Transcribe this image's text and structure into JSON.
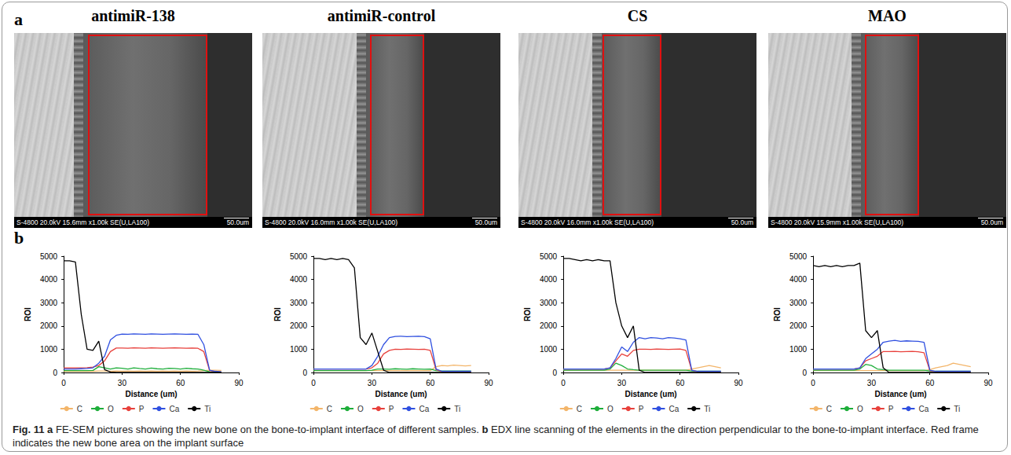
{
  "panel_a": {
    "letter": "a",
    "panels": [
      {
        "title": "antimiR-138",
        "info": "S-4800 20.0kV 15.6mm x1.00k SE(U,LA100)",
        "scale": "50.0um"
      },
      {
        "title": "antimiR-control",
        "info": "S-4800 20.0kV 16.0mm x1.00k SE(U,LA100)",
        "scale": "50.0um"
      },
      {
        "title": "CS",
        "info": "S-4800 20.0kV 16.0mm x1.00k SE(U,LA100)",
        "scale": "50.0um"
      },
      {
        "title": "MAO",
        "info": "S-4800 20.0kV 15.9mm x1.00k SE(U,LA100)",
        "scale": "50.0um"
      }
    ]
  },
  "panel_b": {
    "letter": "b"
  },
  "chart_data": [
    {
      "type": "line",
      "x_label": "Distance (um)",
      "y_label": "ROI",
      "xlim": [
        0,
        90
      ],
      "xticks": [
        0,
        30,
        60,
        90
      ],
      "ylim": [
        0,
        5000
      ],
      "yticks": [
        0,
        1000,
        2000,
        3000,
        4000,
        5000
      ],
      "grid": false,
      "legend": "bottom",
      "x": [
        0,
        3,
        6,
        9,
        12,
        15,
        18,
        21,
        24,
        27,
        30,
        33,
        36,
        39,
        42,
        45,
        48,
        51,
        54,
        57,
        60,
        63,
        66,
        69,
        72,
        75,
        78,
        81
      ],
      "series": [
        {
          "name": "C",
          "color": "#f3b56a",
          "values": [
            50,
            50,
            50,
            50,
            50,
            50,
            60,
            60,
            50,
            60,
            50,
            60,
            50,
            60,
            50,
            60,
            50,
            60,
            50,
            60,
            50,
            60,
            50,
            60,
            80,
            100,
            100,
            90
          ]
        },
        {
          "name": "O",
          "color": "#1fae3b",
          "values": [
            80,
            80,
            80,
            80,
            80,
            90,
            250,
            200,
            150,
            200,
            180,
            150,
            200,
            170,
            150,
            190,
            160,
            150,
            180,
            170,
            150,
            180,
            160,
            150,
            100,
            30,
            20,
            20
          ]
        },
        {
          "name": "P",
          "color": "#e8413c",
          "values": [
            200,
            200,
            200,
            200,
            210,
            230,
            300,
            500,
            900,
            1050,
            1050,
            1040,
            1060,
            1050,
            1040,
            1060,
            1050,
            1040,
            1050,
            1060,
            1050,
            1040,
            1050,
            1040,
            900,
            80,
            40,
            20
          ]
        },
        {
          "name": "Ca",
          "color": "#3050e0",
          "values": [
            150,
            150,
            150,
            160,
            170,
            200,
            400,
            700,
            1400,
            1600,
            1650,
            1640,
            1660,
            1650,
            1640,
            1660,
            1650,
            1640,
            1650,
            1660,
            1650,
            1640,
            1650,
            1640,
            1200,
            100,
            50,
            30
          ]
        },
        {
          "name": "Ti",
          "color": "#000000",
          "values": [
            4800,
            4800,
            4750,
            2500,
            1000,
            950,
            1350,
            120,
            20,
            0,
            0,
            0,
            0,
            0,
            0,
            0,
            0,
            0,
            0,
            0,
            0,
            0,
            0,
            0,
            0,
            0,
            0,
            0
          ]
        }
      ]
    },
    {
      "type": "line",
      "x_label": "Distance (um)",
      "y_label": "ROI",
      "xlim": [
        0,
        90
      ],
      "xticks": [
        0,
        30,
        60,
        90
      ],
      "ylim": [
        0,
        5000
      ],
      "yticks": [
        0,
        1000,
        2000,
        3000,
        4000,
        5000
      ],
      "grid": false,
      "legend": "bottom",
      "x": [
        0,
        3,
        6,
        9,
        12,
        15,
        18,
        21,
        24,
        27,
        30,
        33,
        36,
        39,
        42,
        45,
        48,
        51,
        54,
        57,
        60,
        63,
        66,
        69,
        72,
        75,
        78,
        81
      ],
      "series": [
        {
          "name": "C",
          "color": "#f3b56a",
          "values": [
            80,
            80,
            80,
            80,
            80,
            80,
            80,
            80,
            80,
            80,
            80,
            80,
            80,
            80,
            80,
            80,
            80,
            80,
            80,
            80,
            80,
            250,
            300,
            280,
            320,
            300,
            280,
            300
          ]
        },
        {
          "name": "O",
          "color": "#1fae3b",
          "values": [
            80,
            80,
            80,
            80,
            80,
            80,
            80,
            80,
            80,
            80,
            100,
            150,
            150,
            140,
            160,
            150,
            140,
            160,
            150,
            140,
            150,
            80,
            60,
            60,
            60,
            60,
            60,
            60
          ]
        },
        {
          "name": "P",
          "color": "#e8413c",
          "values": [
            150,
            150,
            150,
            150,
            150,
            150,
            150,
            150,
            150,
            150,
            200,
            400,
            800,
            950,
            1000,
            990,
            1010,
            1000,
            990,
            1000,
            950,
            120,
            40,
            40,
            40,
            40,
            40,
            40
          ]
        },
        {
          "name": "Ca",
          "color": "#3050e0",
          "values": [
            150,
            150,
            150,
            150,
            150,
            150,
            150,
            150,
            150,
            150,
            300,
            700,
            1200,
            1500,
            1550,
            1560,
            1540,
            1550,
            1560,
            1540,
            1450,
            150,
            50,
            50,
            50,
            50,
            50,
            50
          ]
        },
        {
          "name": "Ti",
          "color": "#000000",
          "values": [
            4900,
            4900,
            4850,
            4900,
            4850,
            4900,
            4850,
            4500,
            1500,
            1200,
            1700,
            900,
            100,
            0,
            0,
            0,
            0,
            0,
            0,
            0,
            0,
            0,
            0,
            0,
            0,
            0,
            0,
            0
          ]
        }
      ]
    },
    {
      "type": "line",
      "x_label": "Distance (um)",
      "y_label": "ROI",
      "xlim": [
        0,
        90
      ],
      "xticks": [
        0,
        30,
        60,
        90
      ],
      "ylim": [
        0,
        5000
      ],
      "yticks": [
        0,
        1000,
        2000,
        3000,
        4000,
        5000
      ],
      "grid": false,
      "legend": "bottom",
      "x": [
        0,
        3,
        6,
        9,
        12,
        15,
        18,
        21,
        24,
        27,
        30,
        33,
        36,
        39,
        42,
        45,
        48,
        51,
        54,
        57,
        60,
        63,
        66,
        69,
        72,
        75,
        78,
        81
      ],
      "series": [
        {
          "name": "C",
          "color": "#f3b56a",
          "values": [
            100,
            100,
            100,
            100,
            100,
            100,
            100,
            100,
            100,
            100,
            100,
            100,
            100,
            100,
            100,
            100,
            100,
            100,
            100,
            100,
            100,
            100,
            150,
            200,
            250,
            300,
            250,
            200
          ]
        },
        {
          "name": "O",
          "color": "#1fae3b",
          "values": [
            100,
            100,
            100,
            100,
            100,
            100,
            100,
            100,
            150,
            400,
            300,
            150,
            120,
            100,
            100,
            100,
            100,
            100,
            100,
            100,
            100,
            100,
            60,
            50,
            50,
            50,
            50,
            50
          ]
        },
        {
          "name": "P",
          "color": "#e8413c",
          "values": [
            150,
            150,
            150,
            150,
            150,
            150,
            150,
            150,
            200,
            500,
            800,
            700,
            950,
            1000,
            1000,
            990,
            1010,
            1000,
            990,
            1000,
            1010,
            950,
            100,
            40,
            40,
            40,
            40,
            40
          ]
        },
        {
          "name": "Ca",
          "color": "#3050e0",
          "values": [
            150,
            150,
            150,
            150,
            150,
            150,
            150,
            150,
            200,
            600,
            1100,
            900,
            1300,
            1500,
            1450,
            1500,
            1480,
            1450,
            1500,
            1480,
            1450,
            1400,
            100,
            50,
            50,
            50,
            50,
            50
          ]
        },
        {
          "name": "Ti",
          "color": "#000000",
          "values": [
            4900,
            4900,
            4850,
            4800,
            4850,
            4800,
            4850,
            4800,
            4800,
            3000,
            2000,
            1500,
            2000,
            100,
            0,
            0,
            0,
            0,
            0,
            0,
            0,
            0,
            0,
            0,
            0,
            0,
            0,
            0
          ]
        }
      ]
    },
    {
      "type": "line",
      "x_label": "Distance (um)",
      "y_label": "ROI",
      "xlim": [
        0,
        90
      ],
      "xticks": [
        0,
        30,
        60,
        90
      ],
      "ylim": [
        0,
        5000
      ],
      "yticks": [
        0,
        1000,
        2000,
        3000,
        4000,
        5000
      ],
      "grid": false,
      "legend": "bottom",
      "x": [
        0,
        3,
        6,
        9,
        12,
        15,
        18,
        21,
        24,
        27,
        30,
        33,
        36,
        39,
        42,
        45,
        48,
        51,
        54,
        57,
        60,
        63,
        66,
        69,
        72,
        75,
        78,
        81
      ],
      "series": [
        {
          "name": "C",
          "color": "#f3b56a",
          "values": [
            80,
            80,
            80,
            80,
            80,
            80,
            80,
            80,
            80,
            80,
            80,
            80,
            80,
            80,
            80,
            80,
            80,
            80,
            80,
            80,
            120,
            200,
            250,
            300,
            400,
            350,
            300,
            250
          ]
        },
        {
          "name": "O",
          "color": "#1fae3b",
          "values": [
            100,
            100,
            100,
            100,
            100,
            100,
            100,
            100,
            150,
            350,
            300,
            150,
            120,
            100,
            100,
            100,
            100,
            100,
            100,
            100,
            60,
            50,
            50,
            50,
            50,
            50,
            50,
            50
          ]
        },
        {
          "name": "P",
          "color": "#e8413c",
          "values": [
            150,
            150,
            150,
            150,
            150,
            150,
            150,
            150,
            200,
            500,
            600,
            700,
            900,
            900,
            910,
            890,
            900,
            910,
            890,
            850,
            80,
            40,
            40,
            40,
            40,
            40,
            40,
            40
          ]
        },
        {
          "name": "Ca",
          "color": "#3050e0",
          "values": [
            150,
            150,
            150,
            150,
            150,
            150,
            150,
            150,
            200,
            600,
            800,
            1000,
            1300,
            1350,
            1380,
            1340,
            1360,
            1350,
            1340,
            1300,
            100,
            50,
            50,
            50,
            50,
            50,
            50,
            50
          ]
        },
        {
          "name": "Ti",
          "color": "#000000",
          "values": [
            4600,
            4550,
            4600,
            4550,
            4600,
            4550,
            4600,
            4600,
            4700,
            1800,
            1500,
            1800,
            200,
            0,
            0,
            0,
            0,
            0,
            0,
            0,
            0,
            0,
            0,
            0,
            0,
            0,
            0,
            0
          ]
        }
      ]
    }
  ],
  "caption": {
    "label": "Fig. 11",
    "parts": [
      {
        "label": "a",
        "text": "FE-SEM pictures showing the new bone on the bone-to-implant interface of different samples."
      },
      {
        "label": "b",
        "text": "EDX line scanning of the elements in the direction perpendicular to the bone-to-implant interface. Red frame indicates the new bone area on the implant surface"
      }
    ]
  }
}
